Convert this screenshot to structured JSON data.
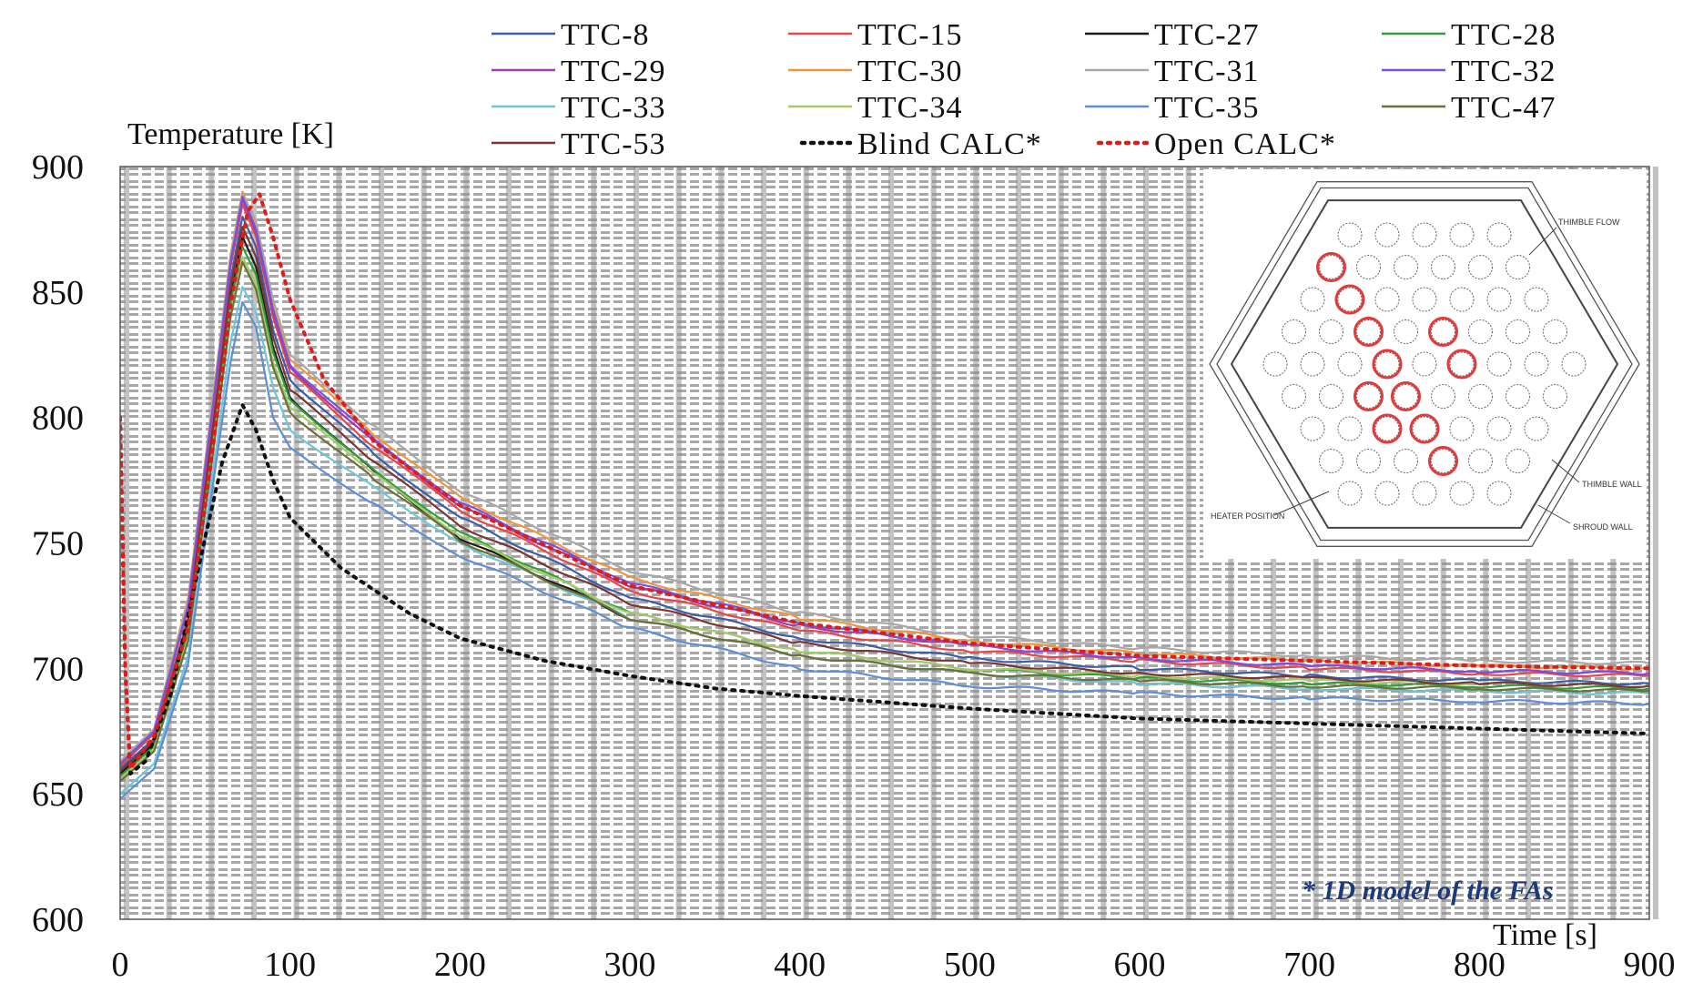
{
  "chart_data": {
    "type": "line",
    "title": "",
    "xlabel": "Time [s]",
    "ylabel": "Temperature [K]",
    "xlim": [
      0,
      900
    ],
    "ylim": [
      600,
      900
    ],
    "xticks": [
      "0",
      "100",
      "200",
      "300",
      "400",
      "500",
      "600",
      "700",
      "800",
      "900"
    ],
    "yticks": [
      "900",
      "850",
      "800",
      "750",
      "700",
      "650",
      "600"
    ],
    "grid": true,
    "legend_position": "top",
    "note": "* 1D model of the FAs",
    "series": [
      {
        "name": "TTC-8",
        "color": "#3b5ea8",
        "style": "solid",
        "points": [
          [
            0,
            660
          ],
          [
            20,
            672
          ],
          [
            40,
            720
          ],
          [
            55,
            800
          ],
          [
            65,
            855
          ],
          [
            72,
            880
          ],
          [
            80,
            868
          ],
          [
            90,
            835
          ],
          [
            100,
            815
          ],
          [
            150,
            785
          ],
          [
            200,
            760
          ],
          [
            300,
            728
          ],
          [
            400,
            712
          ],
          [
            500,
            704
          ],
          [
            600,
            700
          ],
          [
            700,
            697
          ],
          [
            800,
            695
          ],
          [
            900,
            694
          ]
        ]
      },
      {
        "name": "TTC-15",
        "color": "#e8454a",
        "style": "solid",
        "points": [
          [
            0,
            661
          ],
          [
            20,
            674
          ],
          [
            40,
            724
          ],
          [
            55,
            805
          ],
          [
            65,
            860
          ],
          [
            72,
            885
          ],
          [
            80,
            872
          ],
          [
            90,
            840
          ],
          [
            100,
            818
          ],
          [
            150,
            788
          ],
          [
            200,
            763
          ],
          [
            300,
            731
          ],
          [
            400,
            715
          ],
          [
            500,
            707
          ],
          [
            600,
            703
          ],
          [
            700,
            700
          ],
          [
            800,
            698
          ],
          [
            900,
            697
          ]
        ]
      },
      {
        "name": "TTC-27",
        "color": "#1a1a1a",
        "style": "solid",
        "points": [
          [
            0,
            658
          ],
          [
            20,
            670
          ],
          [
            40,
            716
          ],
          [
            55,
            795
          ],
          [
            65,
            848
          ],
          [
            72,
            872
          ],
          [
            80,
            860
          ],
          [
            90,
            828
          ],
          [
            100,
            808
          ],
          [
            150,
            778
          ],
          [
            200,
            752
          ],
          [
            300,
            720
          ],
          [
            400,
            705
          ],
          [
            500,
            698
          ],
          [
            600,
            694
          ],
          [
            700,
            692
          ],
          [
            800,
            691
          ],
          [
            900,
            690
          ]
        ]
      },
      {
        "name": "TTC-28",
        "color": "#2f9e3a",
        "style": "solid",
        "points": [
          [
            0,
            657
          ],
          [
            20,
            669
          ],
          [
            40,
            715
          ],
          [
            55,
            793
          ],
          [
            65,
            846
          ],
          [
            72,
            868
          ],
          [
            80,
            857
          ],
          [
            90,
            826
          ],
          [
            100,
            807
          ],
          [
            150,
            779
          ],
          [
            200,
            754
          ],
          [
            300,
            722
          ],
          [
            400,
            707
          ],
          [
            500,
            700
          ],
          [
            600,
            696
          ],
          [
            700,
            694
          ],
          [
            800,
            693
          ],
          [
            900,
            692
          ]
        ]
      },
      {
        "name": "TTC-29",
        "color": "#9b3fa6",
        "style": "solid",
        "points": [
          [
            0,
            662
          ],
          [
            20,
            675
          ],
          [
            40,
            726
          ],
          [
            55,
            808
          ],
          [
            65,
            862
          ],
          [
            72,
            887
          ],
          [
            80,
            874
          ],
          [
            90,
            842
          ],
          [
            100,
            820
          ],
          [
            150,
            790
          ],
          [
            200,
            765
          ],
          [
            300,
            733
          ],
          [
            400,
            717
          ],
          [
            500,
            709
          ],
          [
            600,
            704
          ],
          [
            700,
            701
          ],
          [
            800,
            699
          ],
          [
            900,
            698
          ]
        ]
      },
      {
        "name": "TTC-30",
        "color": "#f0953c",
        "style": "solid",
        "points": [
          [
            0,
            663
          ],
          [
            20,
            676
          ],
          [
            40,
            728
          ],
          [
            55,
            810
          ],
          [
            65,
            865
          ],
          [
            72,
            890
          ],
          [
            80,
            877
          ],
          [
            90,
            845
          ],
          [
            100,
            823
          ],
          [
            150,
            793
          ],
          [
            200,
            768
          ],
          [
            300,
            736
          ],
          [
            400,
            720
          ],
          [
            500,
            711
          ],
          [
            600,
            706
          ],
          [
            700,
            703
          ],
          [
            800,
            701
          ],
          [
            900,
            700
          ]
        ]
      },
      {
        "name": "TTC-31",
        "color": "#a8a8a8",
        "style": "solid",
        "points": [
          [
            0,
            663
          ],
          [
            20,
            676
          ],
          [
            40,
            727
          ],
          [
            55,
            809
          ],
          [
            65,
            864
          ],
          [
            72,
            889
          ],
          [
            80,
            878
          ],
          [
            90,
            847
          ],
          [
            100,
            825
          ],
          [
            150,
            796
          ],
          [
            200,
            771
          ],
          [
            300,
            739
          ],
          [
            400,
            722
          ],
          [
            500,
            713
          ],
          [
            600,
            708
          ],
          [
            700,
            705
          ],
          [
            800,
            703
          ],
          [
            900,
            702
          ]
        ]
      },
      {
        "name": "TTC-32",
        "color": "#7b4fe0",
        "style": "solid",
        "points": [
          [
            0,
            662
          ],
          [
            20,
            675
          ],
          [
            40,
            725
          ],
          [
            55,
            807
          ],
          [
            65,
            862
          ],
          [
            72,
            888
          ],
          [
            80,
            875
          ],
          [
            90,
            843
          ],
          [
            100,
            821
          ],
          [
            150,
            791
          ],
          [
            200,
            766
          ],
          [
            300,
            734
          ],
          [
            400,
            718
          ],
          [
            500,
            709
          ],
          [
            600,
            704
          ],
          [
            700,
            701
          ],
          [
            800,
            699
          ],
          [
            900,
            698
          ]
        ]
      },
      {
        "name": "TTC-33",
        "color": "#6fc6d6",
        "style": "solid",
        "points": [
          [
            0,
            650
          ],
          [
            20,
            662
          ],
          [
            40,
            705
          ],
          [
            55,
            780
          ],
          [
            65,
            830
          ],
          [
            72,
            852
          ],
          [
            80,
            842
          ],
          [
            90,
            812
          ],
          [
            100,
            795
          ],
          [
            150,
            772
          ],
          [
            200,
            750
          ],
          [
            300,
            720
          ],
          [
            400,
            705
          ],
          [
            500,
            698
          ],
          [
            600,
            694
          ],
          [
            700,
            692
          ],
          [
            800,
            691
          ],
          [
            900,
            690
          ]
        ]
      },
      {
        "name": "TTC-34",
        "color": "#a6c96a",
        "style": "solid",
        "points": [
          [
            0,
            656
          ],
          [
            20,
            668
          ],
          [
            40,
            712
          ],
          [
            55,
            790
          ],
          [
            65,
            842
          ],
          [
            72,
            864
          ],
          [
            80,
            853
          ],
          [
            90,
            822
          ],
          [
            100,
            804
          ],
          [
            150,
            777
          ],
          [
            200,
            753
          ],
          [
            300,
            722
          ],
          [
            400,
            707
          ],
          [
            500,
            700
          ],
          [
            600,
            697
          ],
          [
            700,
            695
          ],
          [
            800,
            694
          ],
          [
            900,
            693
          ]
        ]
      },
      {
        "name": "TTC-35",
        "color": "#5e8fd6",
        "style": "solid",
        "points": [
          [
            0,
            648
          ],
          [
            20,
            660
          ],
          [
            40,
            702
          ],
          [
            55,
            775
          ],
          [
            65,
            822
          ],
          [
            72,
            846
          ],
          [
            80,
            836
          ],
          [
            90,
            800
          ],
          [
            100,
            788
          ],
          [
            150,
            765
          ],
          [
            200,
            745
          ],
          [
            300,
            716
          ],
          [
            400,
            700
          ],
          [
            500,
            693
          ],
          [
            600,
            690
          ],
          [
            700,
            688
          ],
          [
            800,
            687
          ],
          [
            900,
            686
          ]
        ]
      },
      {
        "name": "TTC-47",
        "color": "#6b7038",
        "style": "solid",
        "points": [
          [
            0,
            655
          ],
          [
            20,
            667
          ],
          [
            40,
            711
          ],
          [
            55,
            788
          ],
          [
            65,
            840
          ],
          [
            72,
            862
          ],
          [
            80,
            851
          ],
          [
            90,
            820
          ],
          [
            100,
            802
          ],
          [
            150,
            775
          ],
          [
            200,
            751
          ],
          [
            300,
            720
          ],
          [
            400,
            705
          ],
          [
            500,
            698
          ],
          [
            600,
            695
          ],
          [
            700,
            693
          ],
          [
            800,
            692
          ],
          [
            900,
            691
          ]
        ]
      },
      {
        "name": "TTC-53",
        "color": "#7a3535",
        "style": "solid",
        "points": [
          [
            0,
            659
          ],
          [
            20,
            671
          ],
          [
            40,
            719
          ],
          [
            55,
            798
          ],
          [
            65,
            852
          ],
          [
            72,
            876
          ],
          [
            80,
            864
          ],
          [
            90,
            832
          ],
          [
            100,
            811
          ],
          [
            150,
            782
          ],
          [
            200,
            757
          ],
          [
            300,
            726
          ],
          [
            400,
            710
          ],
          [
            500,
            702
          ],
          [
            600,
            698
          ],
          [
            700,
            696
          ],
          [
            800,
            694
          ],
          [
            900,
            693
          ]
        ]
      },
      {
        "name": "Blind CALC*",
        "color": "#111111",
        "style": "dotted",
        "points": [
          [
            0,
            800
          ],
          [
            3,
            700
          ],
          [
            6,
            658
          ],
          [
            15,
            663
          ],
          [
            30,
            690
          ],
          [
            50,
            752
          ],
          [
            60,
            782
          ],
          [
            72,
            805
          ],
          [
            80,
            795
          ],
          [
            90,
            775
          ],
          [
            100,
            760
          ],
          [
            130,
            740
          ],
          [
            170,
            722
          ],
          [
            200,
            712
          ],
          [
            250,
            703
          ],
          [
            300,
            697
          ],
          [
            350,
            692
          ],
          [
            400,
            689
          ],
          [
            500,
            684
          ],
          [
            600,
            680
          ],
          [
            700,
            678
          ],
          [
            800,
            676
          ],
          [
            900,
            674
          ]
        ]
      },
      {
        "name": "Open CALC*",
        "color": "#e21a1a",
        "style": "dotted",
        "points": [
          [
            0,
            800
          ],
          [
            3,
            700
          ],
          [
            6,
            660
          ],
          [
            20,
            673
          ],
          [
            40,
            716
          ],
          [
            55,
            790
          ],
          [
            65,
            845
          ],
          [
            75,
            882
          ],
          [
            82,
            889
          ],
          [
            90,
            872
          ],
          [
            100,
            847
          ],
          [
            120,
            815
          ],
          [
            150,
            790
          ],
          [
            200,
            765
          ],
          [
            300,
            733
          ],
          [
            400,
            718
          ],
          [
            500,
            710
          ],
          [
            600,
            705
          ],
          [
            700,
            703
          ],
          [
            800,
            701
          ],
          [
            900,
            700
          ]
        ]
      }
    ]
  },
  "inset": {
    "annotations": [
      "THIMBLE FLOW",
      "THIMBLE WALL",
      "SHROUD WALL",
      "HEATER POSITION"
    ]
  }
}
